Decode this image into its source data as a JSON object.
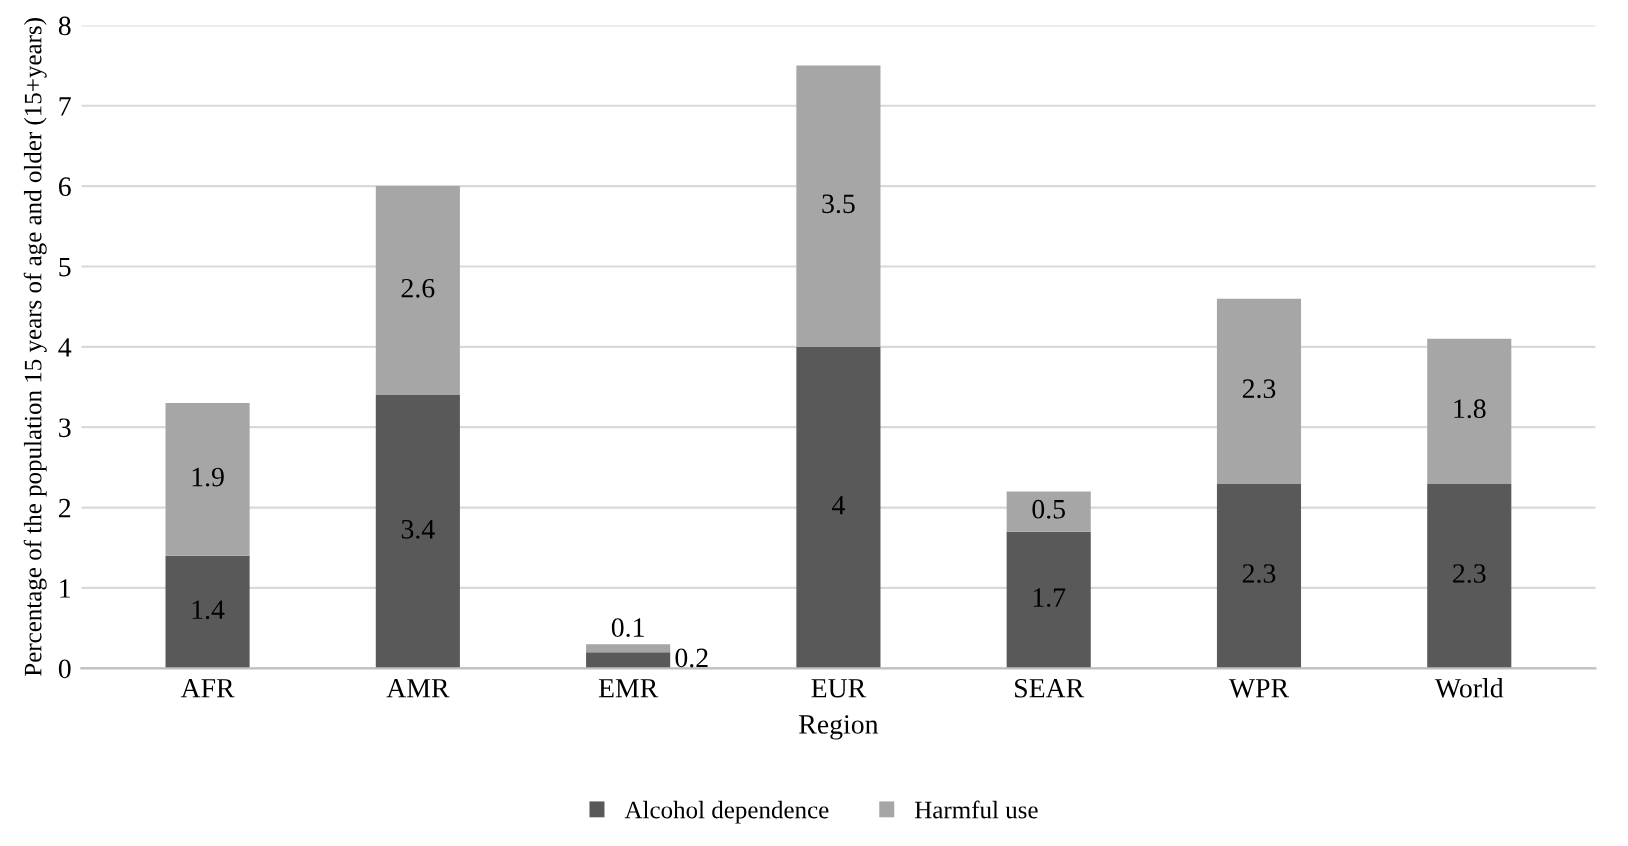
{
  "chart_data": {
    "type": "bar",
    "stacked": true,
    "xlabel": "Region",
    "ylabel": "Percentage of the population 15 years of age and older (15+years)",
    "categories": [
      "AFR",
      "AMR",
      "EMR",
      "EUR",
      "SEAR",
      "WPR",
      "World"
    ],
    "series": [
      {
        "name": "Alcohol dependence",
        "color": "#595959",
        "values": [
          1.4,
          3.4,
          0.2,
          4,
          1.7,
          2.3,
          2.3
        ]
      },
      {
        "name": "Harmful use",
        "color": "#a6a6a6",
        "values": [
          1.9,
          2.6,
          0.1,
          3.5,
          0.5,
          2.3,
          1.8
        ]
      }
    ],
    "ylim": [
      0,
      8
    ],
    "yticks": [
      0,
      1,
      2,
      3,
      4,
      5,
      6,
      7,
      8
    ],
    "grid": "y",
    "data_labels": true,
    "legend": "bottom"
  }
}
